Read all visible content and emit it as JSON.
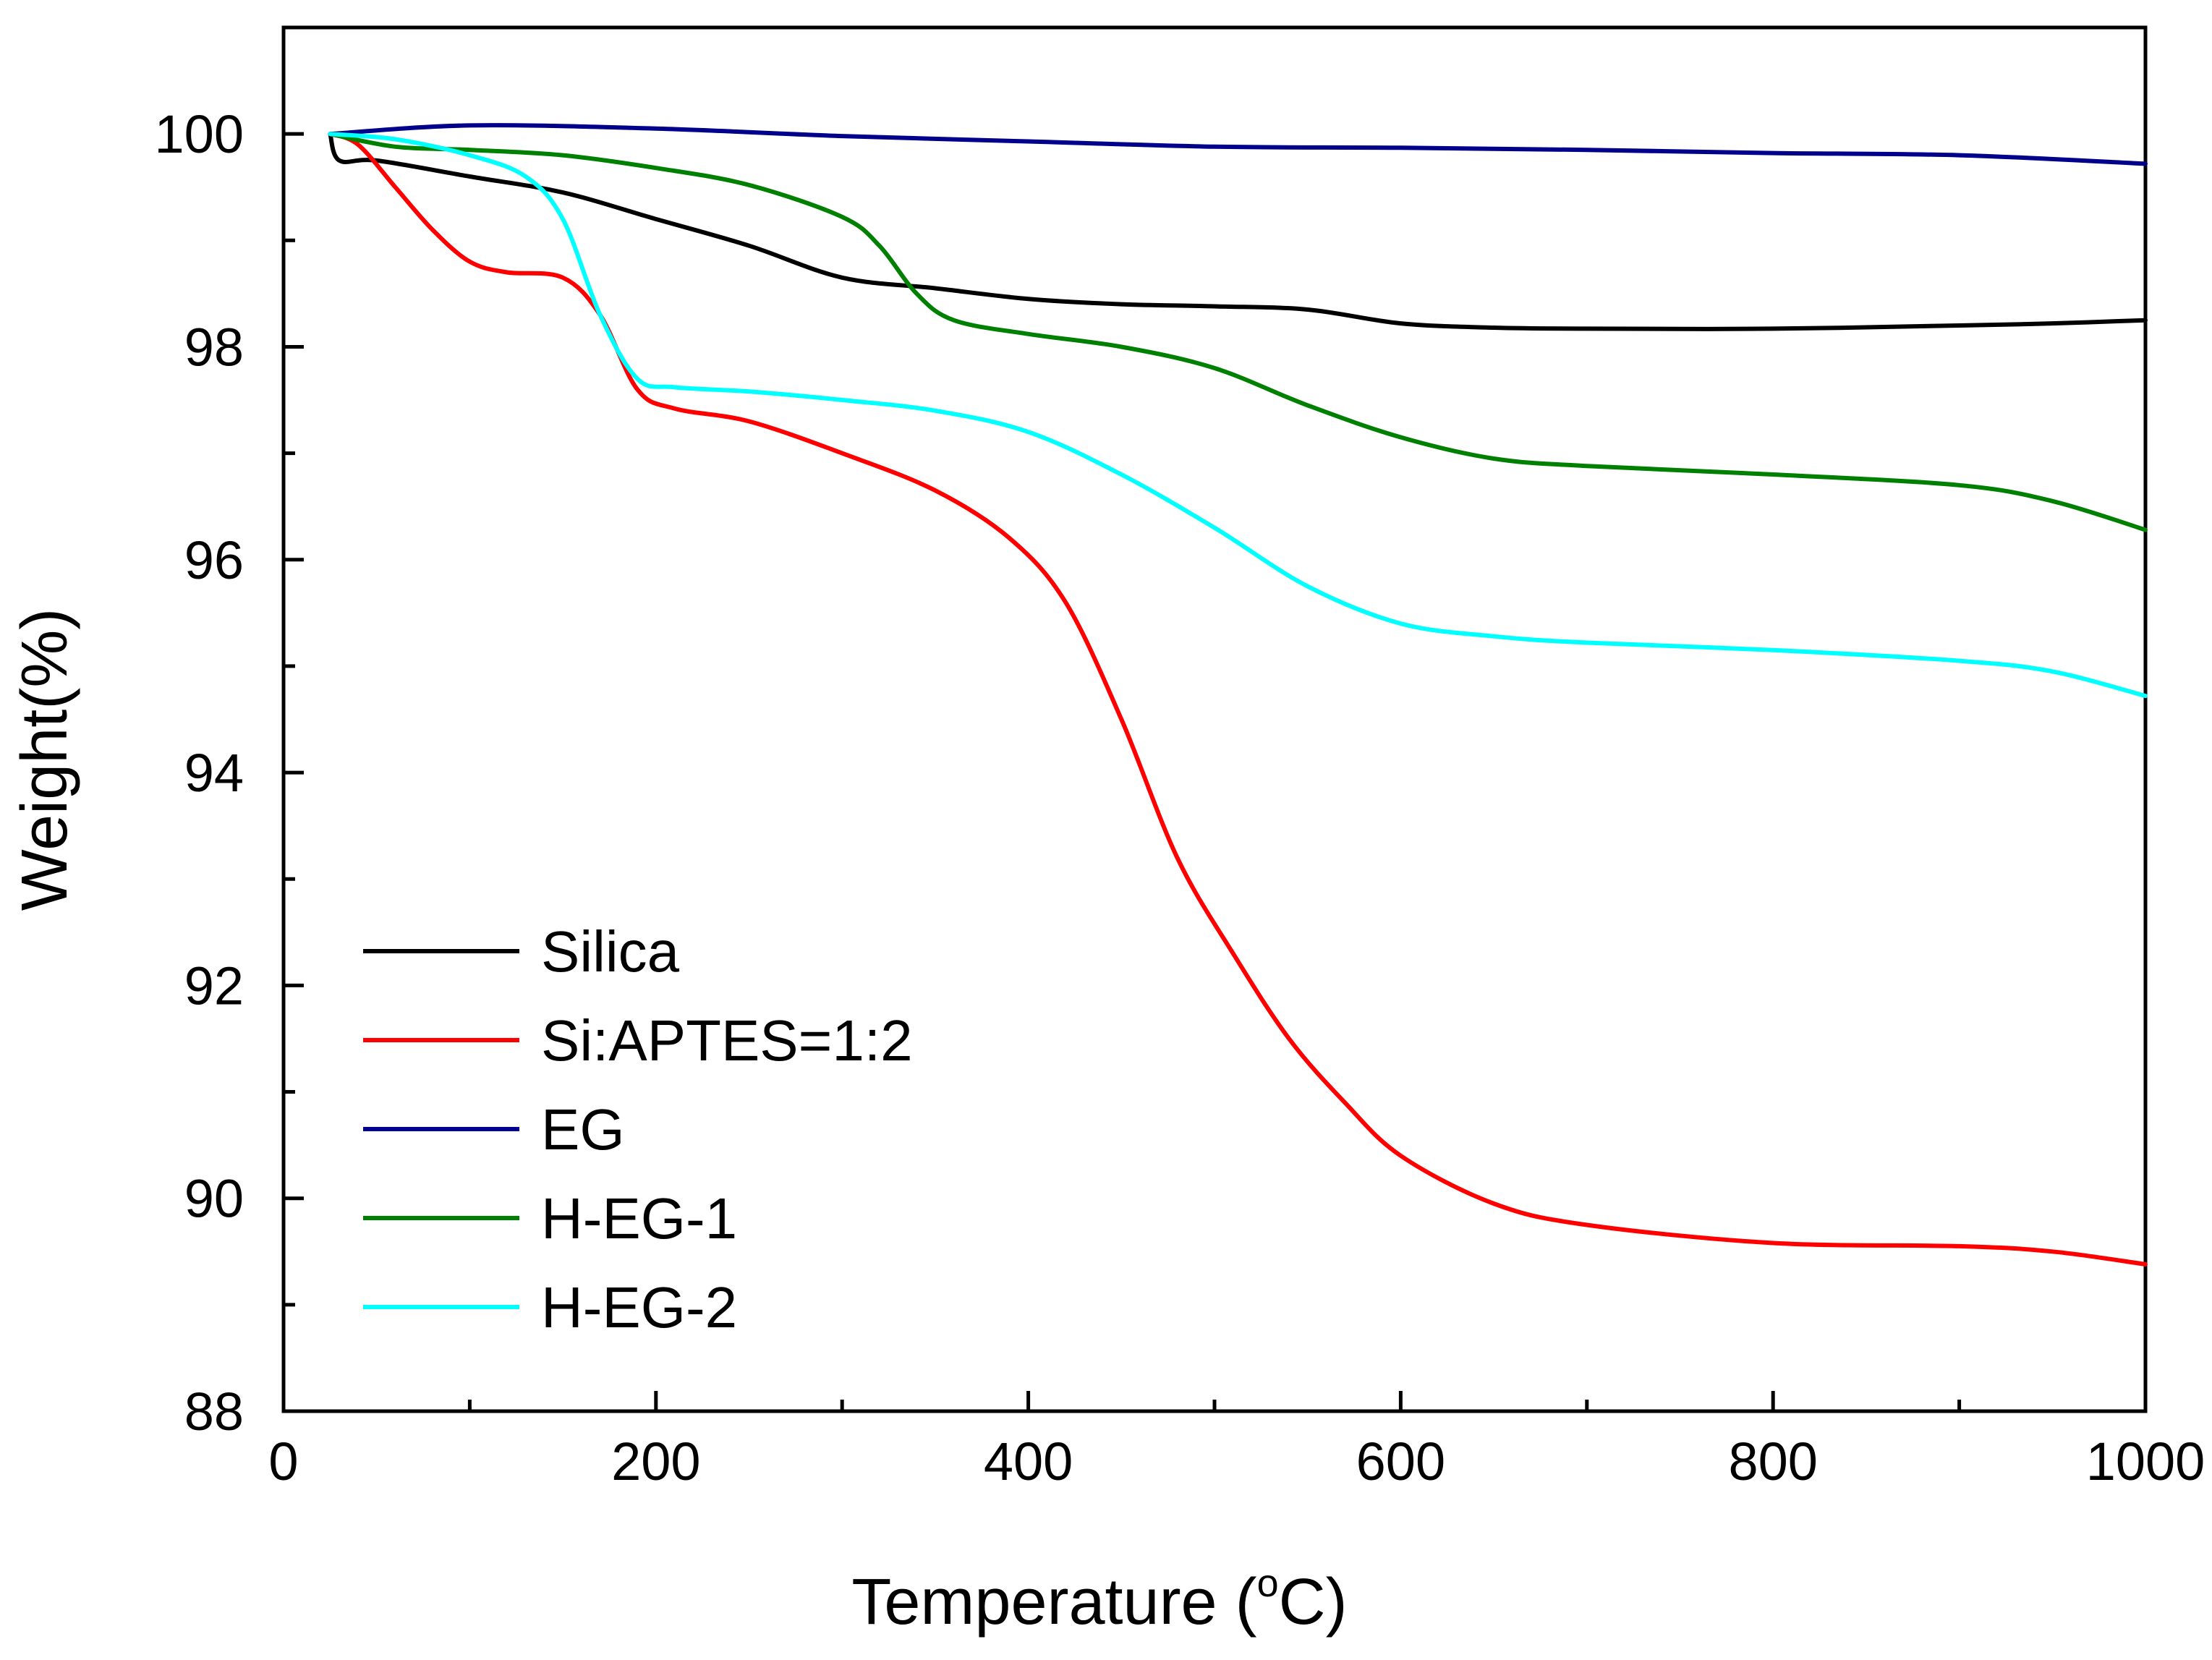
{
  "chart_data": {
    "type": "line",
    "title": "",
    "xlabel": "Temperature (°C)",
    "xlabel_parts": {
      "prefix": "Temperature (",
      "superscript": "o",
      "suffix": "C)"
    },
    "ylabel": "Weight(%)",
    "xlim": [
      0,
      1000
    ],
    "ylim": [
      88,
      101
    ],
    "xticks": [
      0,
      200,
      400,
      600,
      800,
      1000
    ],
    "xtick_labels": [
      "0",
      "200",
      "400",
      "600",
      "800",
      "1000"
    ],
    "yticks": [
      88,
      90,
      92,
      94,
      96,
      98,
      100
    ],
    "ytick_labels": [
      "88",
      "90",
      "92",
      "94",
      "96",
      "98",
      "100"
    ],
    "grid": false,
    "legend_position": "lower-left",
    "series": [
      {
        "name": "Silica",
        "color": "#000000",
        "points": [
          [
            25,
            100
          ],
          [
            30,
            99.75
          ],
          [
            50,
            99.75
          ],
          [
            100,
            99.6
          ],
          [
            150,
            99.45
          ],
          [
            200,
            99.2
          ],
          [
            250,
            98.95
          ],
          [
            300,
            98.65
          ],
          [
            350,
            98.55
          ],
          [
            400,
            98.45
          ],
          [
            450,
            98.4
          ],
          [
            500,
            98.38
          ],
          [
            550,
            98.35
          ],
          [
            600,
            98.22
          ],
          [
            650,
            98.18
          ],
          [
            700,
            98.17
          ],
          [
            800,
            98.17
          ],
          [
            900,
            98.2
          ],
          [
            950,
            98.22
          ],
          [
            1000,
            98.25
          ]
        ]
      },
      {
        "name": "Si:APTES=1:2",
        "color": "#ff0000",
        "points": [
          [
            25,
            100
          ],
          [
            40,
            99.9
          ],
          [
            60,
            99.5
          ],
          [
            80,
            99.1
          ],
          [
            100,
            98.8
          ],
          [
            120,
            98.7
          ],
          [
            150,
            98.65
          ],
          [
            170,
            98.3
          ],
          [
            190,
            97.6
          ],
          [
            210,
            97.42
          ],
          [
            250,
            97.3
          ],
          [
            300,
            97.0
          ],
          [
            350,
            96.65
          ],
          [
            390,
            96.2
          ],
          [
            420,
            95.6
          ],
          [
            450,
            94.5
          ],
          [
            480,
            93.2
          ],
          [
            510,
            92.3
          ],
          [
            540,
            91.5
          ],
          [
            570,
            90.9
          ],
          [
            600,
            90.4
          ],
          [
            650,
            89.95
          ],
          [
            700,
            89.75
          ],
          [
            800,
            89.58
          ],
          [
            900,
            89.55
          ],
          [
            950,
            89.5
          ],
          [
            1000,
            89.38
          ]
        ]
      },
      {
        "name": "EG",
        "color": "#00008b",
        "points": [
          [
            25,
            100
          ],
          [
            100,
            100.08
          ],
          [
            200,
            100.05
          ],
          [
            300,
            99.98
          ],
          [
            400,
            99.93
          ],
          [
            500,
            99.88
          ],
          [
            600,
            99.87
          ],
          [
            700,
            99.85
          ],
          [
            800,
            99.82
          ],
          [
            900,
            99.8
          ],
          [
            1000,
            99.72
          ]
        ]
      },
      {
        "name": "H-EG-1",
        "color": "#008000",
        "points": [
          [
            25,
            100
          ],
          [
            60,
            99.88
          ],
          [
            100,
            99.85
          ],
          [
            150,
            99.8
          ],
          [
            200,
            99.68
          ],
          [
            250,
            99.52
          ],
          [
            300,
            99.22
          ],
          [
            320,
            98.95
          ],
          [
            340,
            98.5
          ],
          [
            360,
            98.25
          ],
          [
            400,
            98.12
          ],
          [
            450,
            98.0
          ],
          [
            500,
            97.8
          ],
          [
            550,
            97.45
          ],
          [
            600,
            97.15
          ],
          [
            650,
            96.95
          ],
          [
            700,
            96.88
          ],
          [
            800,
            96.8
          ],
          [
            900,
            96.7
          ],
          [
            950,
            96.55
          ],
          [
            1000,
            96.28
          ]
        ]
      },
      {
        "name": "H-EG-2",
        "color": "#00ffff",
        "points": [
          [
            25,
            100
          ],
          [
            60,
            99.95
          ],
          [
            100,
            99.8
          ],
          [
            130,
            99.6
          ],
          [
            150,
            99.2
          ],
          [
            170,
            98.3
          ],
          [
            190,
            97.7
          ],
          [
            210,
            97.62
          ],
          [
            250,
            97.58
          ],
          [
            300,
            97.5
          ],
          [
            350,
            97.4
          ],
          [
            400,
            97.2
          ],
          [
            450,
            96.8
          ],
          [
            500,
            96.3
          ],
          [
            550,
            95.75
          ],
          [
            600,
            95.4
          ],
          [
            650,
            95.28
          ],
          [
            700,
            95.22
          ],
          [
            800,
            95.15
          ],
          [
            900,
            95.05
          ],
          [
            950,
            94.95
          ],
          [
            1000,
            94.72
          ]
        ]
      }
    ]
  }
}
